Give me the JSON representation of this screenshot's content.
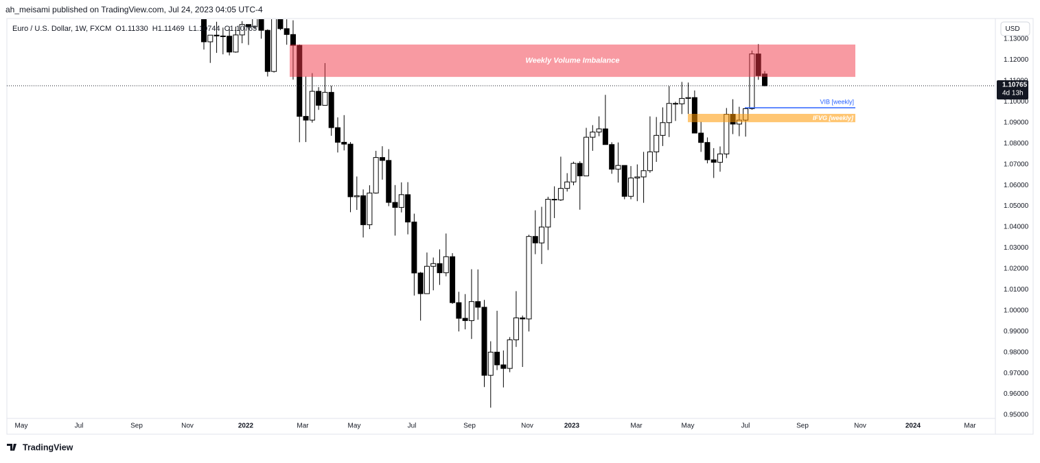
{
  "header": {
    "byline": "ah_meisami published on TradingView.com, Jul 24, 2023 04:05 UTC-4"
  },
  "footer": {
    "brand": "TradingView"
  },
  "chart_data": {
    "type": "candlestick",
    "legend": {
      "symbol": "Euro / U.S. Dollar, 1W, FXCM",
      "ohlc": [
        {
          "key": "O",
          "value": "1.11330"
        },
        {
          "key": "H",
          "value": "1.11469"
        },
        {
          "key": "L",
          "value": "1.10744"
        },
        {
          "key": "C",
          "value": "1.10765"
        }
      ]
    },
    "currency": "USD",
    "candles": {
      "open": [
        1.1445,
        1.1287,
        1.1319,
        1.1315,
        1.1314,
        1.1238,
        1.132,
        1.137,
        1.1359,
        1.1411,
        1.1342,
        1.1145,
        1.1454,
        1.135,
        1.1322,
        1.127,
        1.093,
        1.0912,
        1.105,
        1.0983,
        1.1045,
        1.0876,
        1.0806,
        1.0797,
        1.0545,
        1.055,
        1.0411,
        1.0563,
        1.0733,
        1.0719,
        1.0518,
        1.0494,
        1.0555,
        1.0424,
        1.018,
        1.0081,
        1.0212,
        1.0225,
        1.0181,
        1.0258,
        1.0038,
        0.9963,
        0.9952,
        1.0043,
        1.0016,
        0.969,
        0.9801,
        0.974,
        0.9723,
        0.986,
        0.9965,
        0.996,
        1.0355,
        1.0324,
        1.04,
        1.0533,
        1.053,
        1.0585,
        1.0616,
        1.0705,
        1.0645,
        1.083,
        1.0855,
        1.087,
        1.0795,
        1.0677,
        1.0695,
        1.0547,
        1.0635,
        1.064,
        1.067,
        1.076,
        1.0839,
        1.09,
        1.0992,
        1.099,
        1.1016,
        1.102,
        1.085,
        1.0805,
        1.0722,
        1.071,
        1.075,
        1.094,
        1.0893,
        1.0912,
        1.0967,
        1.1229,
        1.1133
      ],
      "high": [
        1.1465,
        1.1315,
        1.1383,
        1.1355,
        1.136,
        1.136,
        1.1386,
        1.137,
        1.1483,
        1.143,
        1.1347,
        1.1484,
        1.1495,
        1.1395,
        1.139,
        1.1274,
        1.1121,
        1.1137,
        1.107,
        1.1185,
        1.1077,
        1.0925,
        1.0936,
        1.0807,
        1.0642,
        1.058,
        1.06,
        1.0765,
        1.0787,
        1.0773,
        1.0601,
        1.0614,
        1.0615,
        1.0464,
        1.0185,
        1.0278,
        1.0254,
        1.0293,
        1.0369,
        1.0275,
        1.009,
        1.0079,
        1.0198,
        1.0197,
        1.0051,
        0.9853,
        0.9999,
        0.9809,
        0.9873,
        1.0093,
        0.9976,
        1.0363,
        1.048,
        1.0497,
        1.0545,
        1.0595,
        1.0737,
        1.0658,
        1.0713,
        1.0715,
        1.0875,
        1.0888,
        1.093,
        1.1033,
        1.0806,
        1.0805,
        1.0695,
        1.0692,
        1.07,
        1.076,
        1.093,
        1.0927,
        1.0973,
        1.1075,
        1.1,
        1.1095,
        1.1092,
        1.1054,
        1.0904,
        1.0829,
        1.0778,
        1.0786,
        1.097,
        1.1012,
        1.0976,
        1.097,
        1.1245,
        1.1276,
        1.1147
      ],
      "low": [
        1.125,
        1.1186,
        1.1234,
        1.1227,
        1.1222,
        1.1235,
        1.128,
        1.1272,
        1.1347,
        1.1302,
        1.1121,
        1.114,
        1.1343,
        1.1273,
        1.1106,
        1.0806,
        1.0807,
        1.09,
        1.0961,
        1.0984,
        1.0837,
        1.0757,
        1.0767,
        1.0471,
        1.0482,
        1.035,
        1.039,
        1.056,
        1.0627,
        1.05,
        1.0359,
        1.047,
        1.0365,
        1.0072,
        0.9952,
        1.008,
        1.0097,
        1.0123,
        1.0164,
        1.0032,
        0.99,
        0.991,
        0.9864,
        0.9956,
        0.9634,
        0.9535,
        0.9715,
        0.9632,
        0.9705,
        0.9826,
        0.973,
        0.99,
        1.027,
        1.0223,
        1.029,
        1.0443,
        1.0525,
        1.057,
        1.06,
        1.0483,
        1.0645,
        1.0765,
        1.0835,
        1.0795,
        1.0655,
        1.0613,
        1.0533,
        1.0533,
        1.0524,
        1.0516,
        1.066,
        1.0712,
        1.0788,
        1.0831,
        1.0908,
        1.0941,
        1.0942,
        1.085,
        1.076,
        1.0705,
        1.0635,
        1.0665,
        1.073,
        1.0845,
        1.0835,
        1.0833,
        1.0962,
        1.1105,
        1.1074
      ],
      "close": [
        1.1287,
        1.1319,
        1.1315,
        1.1314,
        1.1238,
        1.132,
        1.137,
        1.1359,
        1.1411,
        1.1342,
        1.1145,
        1.1454,
        1.135,
        1.1322,
        1.127,
        1.093,
        1.0912,
        1.105,
        1.0983,
        1.1045,
        1.0876,
        1.0806,
        1.0797,
        1.0545,
        1.055,
        1.0411,
        1.0563,
        1.0733,
        1.0719,
        1.0518,
        1.0494,
        1.0555,
        1.0424,
        1.018,
        1.0081,
        1.0212,
        1.0225,
        1.0181,
        1.0258,
        1.0038,
        0.9963,
        0.9952,
        1.0043,
        1.0016,
        0.969,
        0.9801,
        0.974,
        0.9723,
        0.986,
        0.9965,
        0.996,
        1.0355,
        1.0324,
        1.04,
        1.0533,
        1.053,
        1.0585,
        1.0616,
        1.0705,
        1.0645,
        1.083,
        1.0855,
        1.087,
        1.0795,
        1.0677,
        1.0695,
        1.0547,
        1.0635,
        1.064,
        1.067,
        1.076,
        1.0839,
        1.09,
        1.0992,
        1.099,
        1.1016,
        1.102,
        1.085,
        1.0805,
        1.0722,
        1.071,
        1.075,
        1.094,
        1.0893,
        1.0912,
        1.0967,
        1.1229,
        1.1125,
        1.10765
      ]
    },
    "up_color": "#ffffff",
    "down_color": "#000000",
    "ylim": [
      0.95,
      1.13
    ],
    "yticks": [
      {
        "value": 0.95,
        "label": "0.95000"
      },
      {
        "value": 0.96,
        "label": "0.96000"
      },
      {
        "value": 0.97,
        "label": "0.97000"
      },
      {
        "value": 0.98,
        "label": "0.98000"
      },
      {
        "value": 0.99,
        "label": "0.99000"
      },
      {
        "value": 1.0,
        "label": "1.00000"
      },
      {
        "value": 1.01,
        "label": "1.01000"
      },
      {
        "value": 1.02,
        "label": "1.02000"
      },
      {
        "value": 1.03,
        "label": "1.03000"
      },
      {
        "value": 1.04,
        "label": "1.04000"
      },
      {
        "value": 1.05,
        "label": "1.05000"
      },
      {
        "value": 1.06,
        "label": "1.06000"
      },
      {
        "value": 1.07,
        "label": "1.07000"
      },
      {
        "value": 1.08,
        "label": "1.08000"
      },
      {
        "value": 1.09,
        "label": "1.09000"
      },
      {
        "value": 1.1,
        "label": "1.10000"
      },
      {
        "value": 1.11,
        "label": "1.11000"
      },
      {
        "value": 1.12,
        "label": "1.12000"
      },
      {
        "value": 1.13,
        "label": "1.13000"
      }
    ],
    "xtick_labels": [
      "May",
      "Jul",
      "Sep",
      "Nov",
      "2022",
      "Mar",
      "May",
      "Jul",
      "Sep",
      "Nov",
      "2023",
      "Mar",
      "May",
      "Jul",
      "Sep",
      "Nov",
      "2024",
      "Mar"
    ],
    "zones": [
      {
        "label": "Weekly Volume Imbalance",
        "top": 1.1274,
        "bottom": 1.1119,
        "color": "#f23645"
      },
      {
        "label": "IFVG [weekly]",
        "top": 1.0942,
        "bottom": 1.0902,
        "color": "#ff9800"
      }
    ],
    "levels": [
      {
        "label": "VIB [weekly]",
        "value": 1.0971,
        "color": "#2962ff"
      }
    ],
    "last_price": {
      "value": 1.10765,
      "label": "1.10765",
      "countdown": "4d 13h"
    }
  }
}
